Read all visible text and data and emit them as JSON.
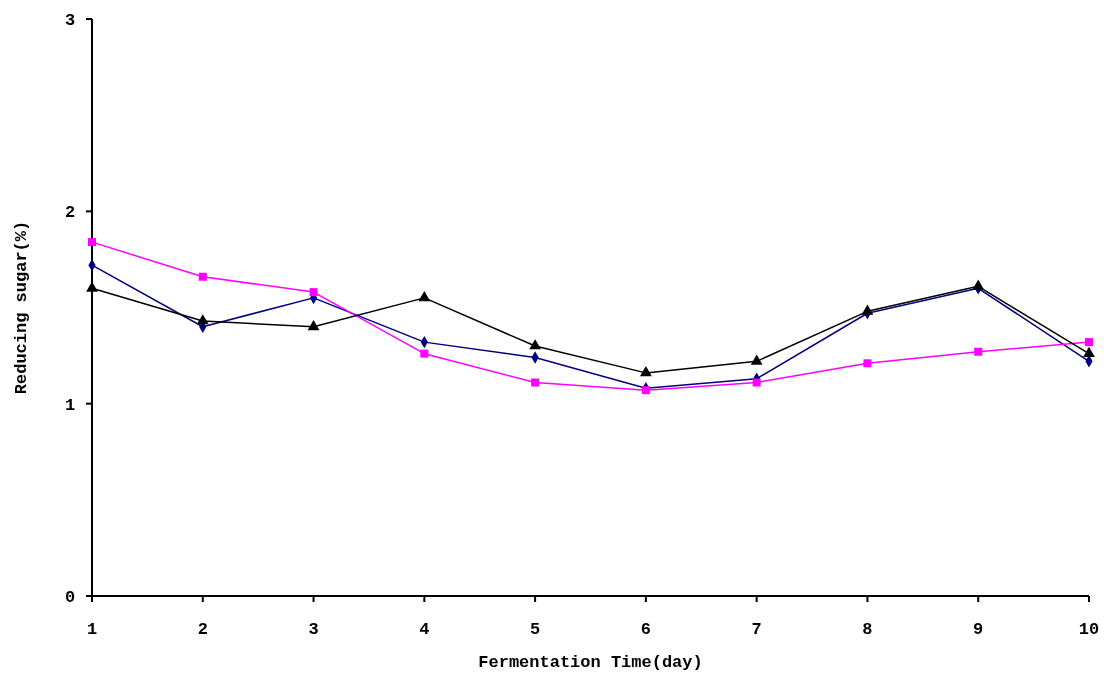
{
  "chart_data": {
    "type": "line",
    "xlabel": "Fermentation Time(day)",
    "ylabel": "Reducing sugar(%)",
    "x": [
      1,
      2,
      3,
      4,
      5,
      6,
      7,
      8,
      9,
      10
    ],
    "xlim": [
      1,
      10
    ],
    "xticks": [
      1,
      2,
      3,
      4,
      5,
      6,
      7,
      8,
      9,
      10
    ],
    "ylim": [
      0,
      3
    ],
    "yticks": [
      0,
      1,
      2,
      3
    ],
    "grid": false,
    "series": [
      {
        "color": "#000080",
        "marker": "diamond",
        "values": [
          1.72,
          1.4,
          1.55,
          1.32,
          1.24,
          1.08,
          1.13,
          1.47,
          1.6,
          1.22
        ]
      },
      {
        "color": "#ff00ff",
        "marker": "square",
        "values": [
          1.84,
          1.66,
          1.58,
          1.26,
          1.11,
          1.07,
          1.11,
          1.21,
          1.27,
          1.32
        ]
      },
      {
        "color": "#000000",
        "marker": "triangle",
        "values": [
          1.6,
          1.43,
          1.4,
          1.55,
          1.3,
          1.16,
          1.22,
          1.48,
          1.61,
          1.26
        ]
      }
    ]
  }
}
